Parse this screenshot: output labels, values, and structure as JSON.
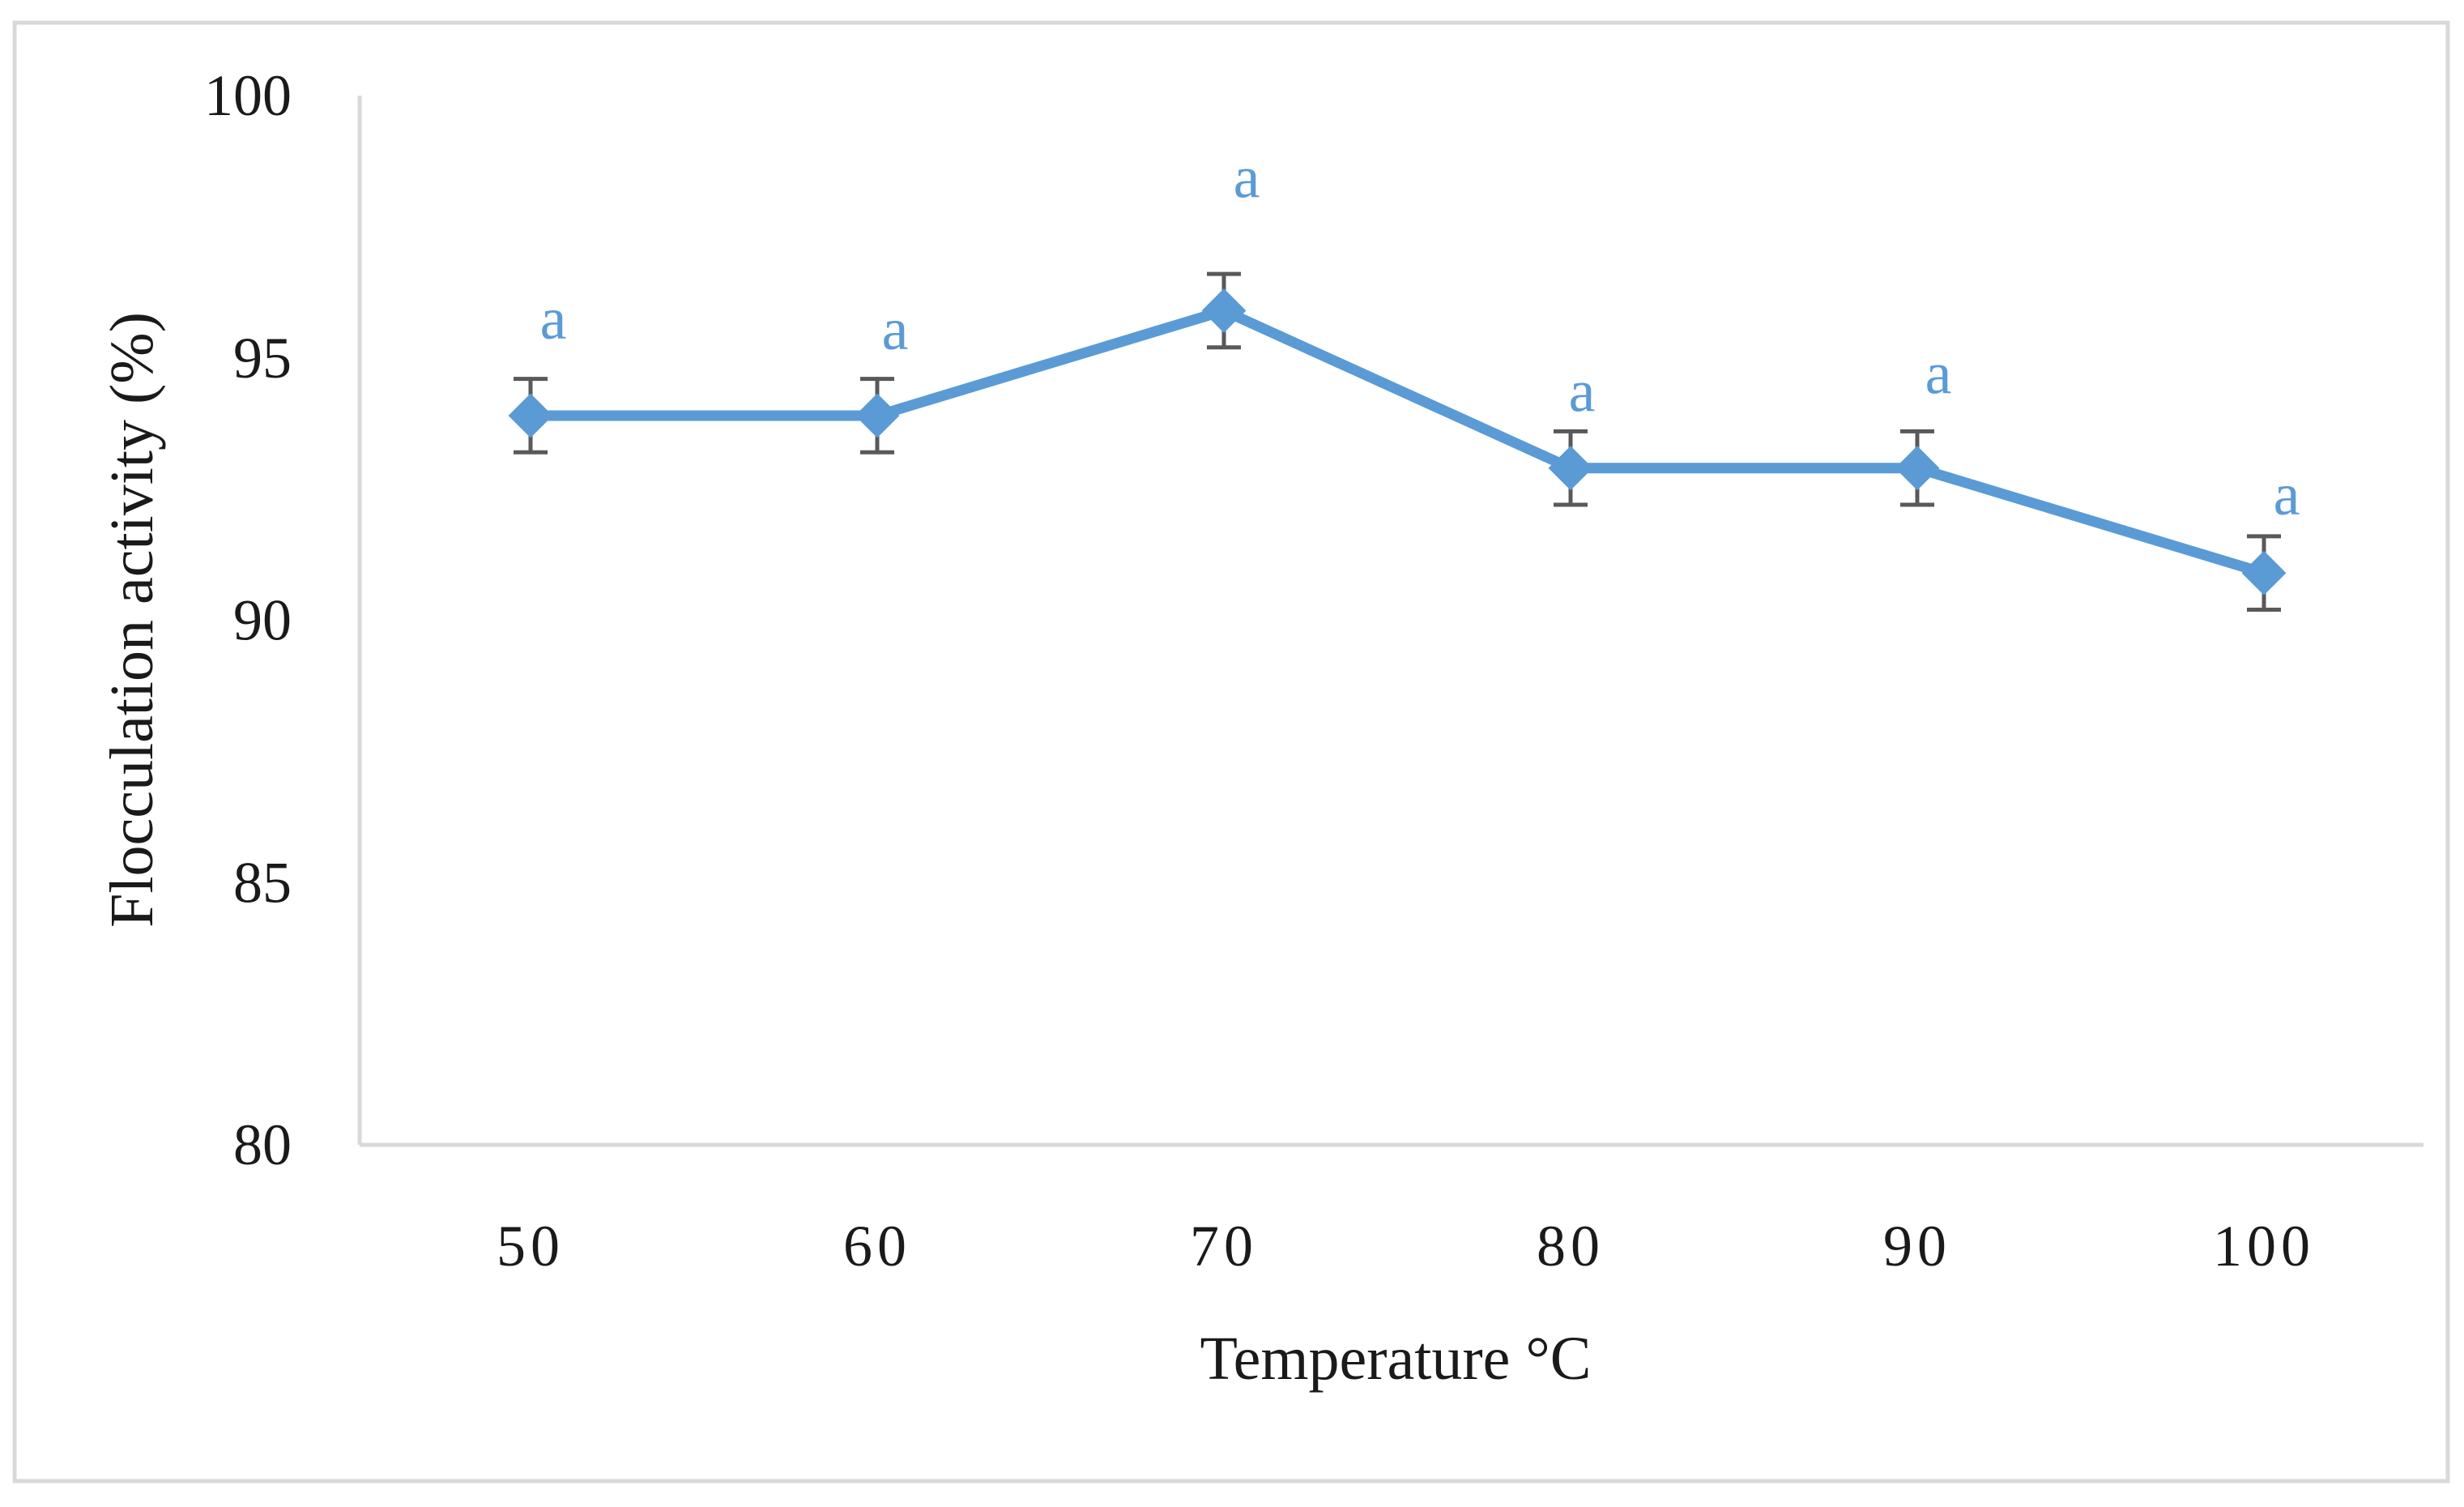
{
  "chart_data": {
    "type": "line",
    "title": "",
    "xlabel": "Temperature °C",
    "ylabel": "Flocculation activity (%)",
    "categories": [
      "50",
      "60",
      "70",
      "80",
      "90",
      "100"
    ],
    "series": [
      {
        "name": "Flocculation activity",
        "values": [
          93.9,
          93.9,
          95.9,
          92.9,
          92.9,
          90.9
        ],
        "errors": [
          0.7,
          0.7,
          0.7,
          0.7,
          0.7,
          0.7
        ],
        "labels": [
          "a",
          "a",
          "a",
          "a",
          "a",
          "a"
        ],
        "color": "#5B9BD5",
        "marker": "diamond"
      }
    ],
    "ylim": [
      80,
      100
    ],
    "yticks": [
      80,
      85,
      90,
      95,
      100
    ],
    "grid": false,
    "legend": "none"
  },
  "colors": {
    "series": "#5B9BD5",
    "error_bar": "#595959",
    "axis": "#d9d9d9",
    "frame": "#d9d9d9",
    "text": "#1a1a1a"
  }
}
